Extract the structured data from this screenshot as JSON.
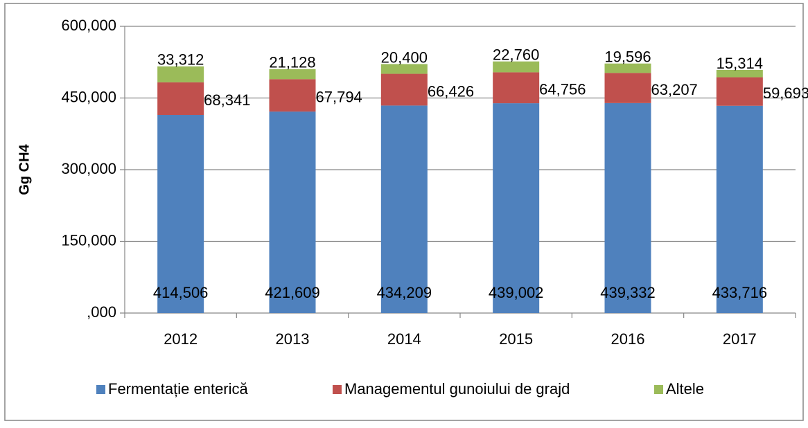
{
  "chart_data": {
    "type": "stacked_bar",
    "y_label": "Gg CH4",
    "categories": [
      "2012",
      "2013",
      "2014",
      "2015",
      "2016",
      "2017"
    ],
    "series": [
      {
        "name": "Fermentație enterică",
        "color": "#4f81bd",
        "values": [
          414.506,
          421.609,
          434.209,
          439.002,
          439.332,
          433.716
        ],
        "value_labels": [
          "414,506",
          "421,609",
          "434,209",
          "439,002",
          "439,332",
          "433,716"
        ]
      },
      {
        "name": "Managementul gunoiului de grajd",
        "color": "#c0504d",
        "values": [
          68.341,
          67.794,
          66.426,
          64.756,
          63.207,
          59.693
        ],
        "value_labels": [
          "68,341",
          "67,794",
          "66,426",
          "64,756",
          "63,207",
          "59,693"
        ]
      },
      {
        "name": "Altele",
        "color": "#9bbb59",
        "values": [
          33.312,
          21.128,
          20.4,
          22.76,
          19.596,
          15.314
        ],
        "value_labels": [
          "33,312",
          "21,128",
          "20,400",
          "22,760",
          "19,596",
          "15,314"
        ]
      }
    ],
    "ylim": [
      0,
      600
    ],
    "yticks": [
      {
        "value": 0,
        "label": ",000"
      },
      {
        "value": 150,
        "label": "150,000"
      },
      {
        "value": 300,
        "label": "300,000"
      },
      {
        "value": 450,
        "label": "450,000"
      },
      {
        "value": 600,
        "label": "600,000"
      }
    ],
    "grid": true,
    "legend": "bottom"
  }
}
